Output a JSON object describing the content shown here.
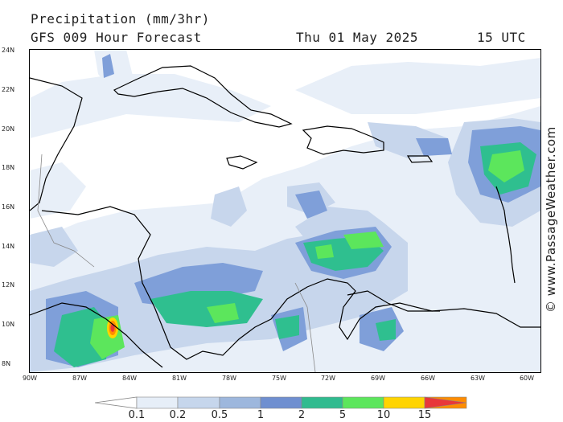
{
  "header": {
    "title": "Precipitation (mm/3hr)",
    "subtitle": "GFS 009 Hour Forecast",
    "date": "Thu 01 May 2025",
    "time": "15 UTC"
  },
  "credit": "© www.PassageWeather.com",
  "axes": {
    "lat_labels": [
      "24N",
      "22N",
      "20N",
      "18N",
      "16N",
      "14N",
      "12N",
      "10N",
      "8N"
    ],
    "lon_labels": [
      "90W",
      "87W",
      "84W",
      "81W",
      "78W",
      "75W",
      "72W",
      "69W",
      "66W",
      "63W",
      "60W"
    ]
  },
  "legend": {
    "labels": [
      "0.1",
      "0.2",
      "0.5",
      "1",
      "2",
      "5",
      "10",
      "15"
    ],
    "colors": [
      "#ffffff",
      "#e6eef8",
      "#c6d6ec",
      "#9db7dd",
      "#6f8fd0",
      "#30bb8f",
      "#5ce65c",
      "#ffd400",
      "#ff8c00",
      "#e8373a"
    ]
  },
  "colors": {
    "light": "#e8eff8",
    "pale": "#c7d6ec",
    "blue": "#7f9fd9",
    "teal": "#2fbf8f",
    "green": "#5ce65c",
    "yellow": "#ffd400",
    "orange": "#ff8c00",
    "red": "#e8373a"
  }
}
